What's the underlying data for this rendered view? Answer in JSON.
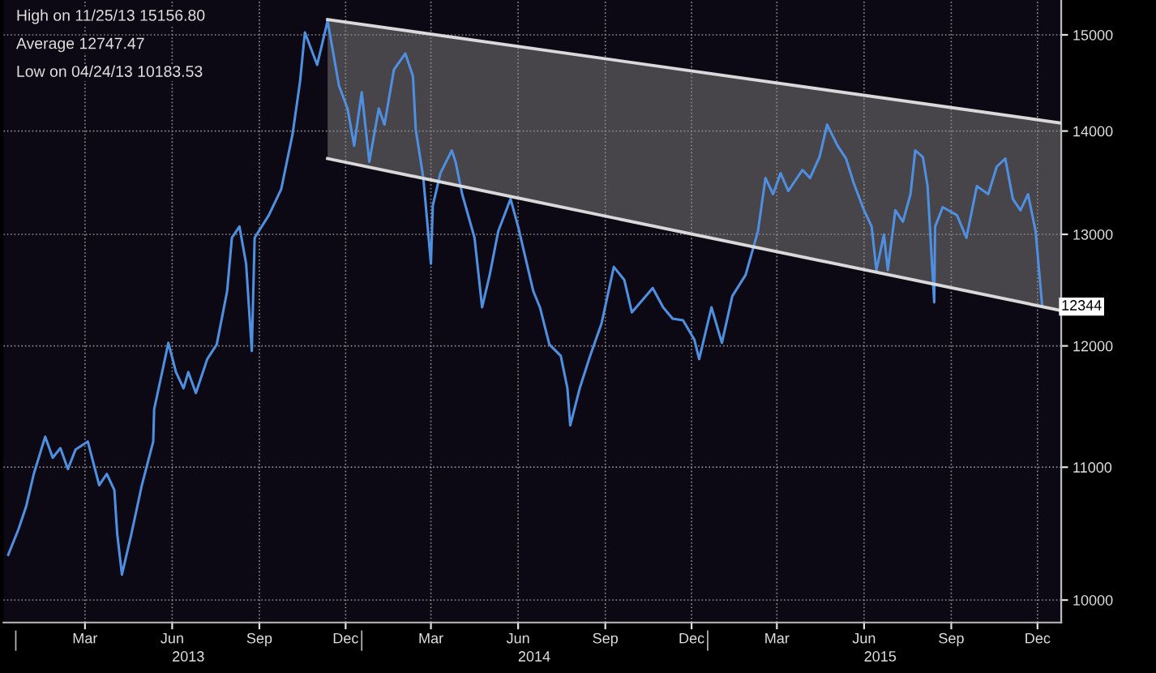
{
  "chart_data": {
    "type": "line",
    "annotations": [
      "High on 11/25/13 15156.80",
      "Average 12747.47",
      "Low on 04/24/13 10183.53",
      {
        "text": "12344",
        "x": "2015-12-20",
        "y": 12344
      }
    ],
    "series": [
      {
        "color": "#4f8fe0",
        "x": [
          "2012-12-24",
          "2013-01-04",
          "2013-01-12",
          "2013-01-20",
          "2013-02-01",
          "2013-02-09",
          "2013-02-17",
          "2013-02-25",
          "2013-03-05",
          "2013-03-18",
          "2013-03-30",
          "2013-04-07",
          "2013-04-15",
          "2013-04-18",
          "2013-04-23",
          "2013-05-03",
          "2013-05-14",
          "2013-05-26",
          "2013-05-27",
          "2013-06-11",
          "2013-06-19",
          "2013-06-27",
          "2013-07-02",
          "2013-07-10",
          "2013-07-22",
          "2013-08-01",
          "2013-08-12",
          "2013-08-17",
          "2013-08-25",
          "2013-09-01",
          "2013-09-07",
          "2013-09-10",
          "2013-09-25",
          "2013-10-08",
          "2013-10-20",
          "2013-10-28",
          "2013-11-02",
          "2013-11-15",
          "2013-11-26",
          "2013-12-08",
          "2013-12-17",
          "2013-12-24",
          "2014-01-01",
          "2014-01-09",
          "2014-01-19",
          "2014-01-25",
          "2014-02-04",
          "2014-02-16",
          "2014-02-24",
          "2014-02-27",
          "2014-03-07",
          "2014-03-15",
          "2014-03-17",
          "2014-03-25",
          "2014-04-06",
          "2014-04-10",
          "2014-04-17",
          "2014-04-30",
          "2014-05-08",
          "2014-05-16",
          "2014-05-25",
          "2014-06-07",
          "2014-06-15",
          "2014-07-01",
          "2014-07-08",
          "2014-07-18",
          "2014-07-30",
          "2014-08-06",
          "2014-08-09",
          "2014-08-19",
          "2014-08-30",
          "2014-09-11",
          "2014-09-24",
          "2014-10-05",
          "2014-10-13",
          "2014-10-22",
          "2014-11-04",
          "2014-11-15",
          "2014-11-25",
          "2014-12-06",
          "2014-12-18",
          "2014-12-23",
          "2015-01-05",
          "2015-01-16",
          "2015-01-27",
          "2015-02-10",
          "2015-02-23",
          "2015-03-03",
          "2015-03-11",
          "2015-03-19",
          "2015-03-27",
          "2015-04-11",
          "2015-04-19",
          "2015-04-29",
          "2015-05-07",
          "2015-05-18",
          "2015-05-27",
          "2015-06-04",
          "2015-06-15",
          "2015-06-23",
          "2015-06-28",
          "2015-07-06",
          "2015-07-10",
          "2015-07-18",
          "2015-07-26",
          "2015-08-03",
          "2015-08-08",
          "2015-08-16",
          "2015-08-21",
          "2015-08-28",
          "2015-08-29",
          "2015-09-06",
          "2015-09-21",
          "2015-10-01",
          "2015-10-12",
          "2015-10-24",
          "2015-11-02",
          "2015-11-11",
          "2015-11-19",
          "2015-11-27",
          "2015-12-05",
          "2015-12-13",
          "2015-12-20"
        ],
        "values": [
          10330,
          10524,
          10696,
          10947,
          11243,
          11075,
          11152,
          10985,
          11139,
          11204,
          10859,
          10947,
          10821,
          10487,
          10184,
          10487,
          10859,
          11204,
          11467,
          12026,
          11777,
          11641,
          11777,
          11601,
          11887,
          12012,
          12481,
          12968,
          13073,
          12729,
          11956,
          12968,
          13180,
          13427,
          13967,
          14512,
          15026,
          14681,
          15150,
          14462,
          14229,
          13854,
          14395,
          13694,
          14229,
          14065,
          14631,
          14801,
          14563,
          14016,
          13536,
          12729,
          13272,
          13583,
          13806,
          13694,
          13380,
          12968,
          12337,
          12626,
          13028,
          13334,
          13073,
          12481,
          12337,
          12012,
          11915,
          11641,
          11335,
          11641,
          11915,
          12194,
          12700,
          12582,
          12293,
          12380,
          12509,
          12337,
          12237,
          12223,
          12053,
          11887,
          12337,
          12026,
          12437,
          12626,
          13028,
          13536,
          13380,
          13583,
          13411,
          13615,
          13536,
          13742,
          14065,
          13854,
          13726,
          13489,
          13226,
          13073,
          12670,
          12998,
          12670,
          13226,
          13119,
          13380,
          13806,
          13742,
          13458,
          12380,
          13073,
          13256,
          13180,
          12968,
          13458,
          13380,
          13647,
          13726,
          13334,
          13226,
          13380,
          13028,
          12344
        ]
      },
      {
        "color": "#d9d9d9",
        "x": [
          "2013-11-26",
          "2016-01-09"
        ],
        "values": [
          15166,
          14080
        ]
      },
      {
        "color": "#d9d9d9",
        "x": [
          "2013-11-26",
          "2016-01-09"
        ],
        "values": [
          13726,
          12308
        ]
      }
    ],
    "log": "y",
    "grid": true,
    "marker": "none",
    "line_style": "solid",
    "xlim": [
      "2012-12-19",
      "2016-01-09"
    ],
    "xticks": [
      {
        "value": "2013-03-15",
        "label": "Mar"
      },
      {
        "value": "2013-06-15",
        "label": "Jun"
      },
      {
        "value": "2013-09-15",
        "label": "Sep"
      },
      {
        "value": "2013-12-15",
        "label": "Dec"
      },
      {
        "value": "2014-03-15",
        "label": "Mar"
      },
      {
        "value": "2014-06-15",
        "label": "Jun"
      },
      {
        "value": "2014-09-15",
        "label": "Sep"
      },
      {
        "value": "2014-12-15",
        "label": "Dec"
      },
      {
        "value": "2015-03-15",
        "label": "Mar"
      },
      {
        "value": "2015-06-15",
        "label": "Jun"
      },
      {
        "value": "2015-09-15",
        "label": "Sep"
      },
      {
        "value": "2015-12-15",
        "label": "Dec"
      }
    ],
    "x2lim": [
      "2012-12-19",
      "2016-01-09"
    ],
    "x2ticks": [
      {
        "value": "2013-01-01",
        "label": null
      },
      {
        "value": "2013-07-02",
        "label": "2013"
      },
      {
        "value": "2014-01-01",
        "label": null
      },
      {
        "value": "2014-07-02",
        "label": "2014"
      },
      {
        "value": "2015-01-01",
        "label": null
      },
      {
        "value": "2015-07-02",
        "label": "2015"
      }
    ],
    "ylim": [
      9840,
      15380
    ],
    "yticks": [
      10000,
      11000,
      12000,
      13000,
      14000,
      15000
    ]
  }
}
